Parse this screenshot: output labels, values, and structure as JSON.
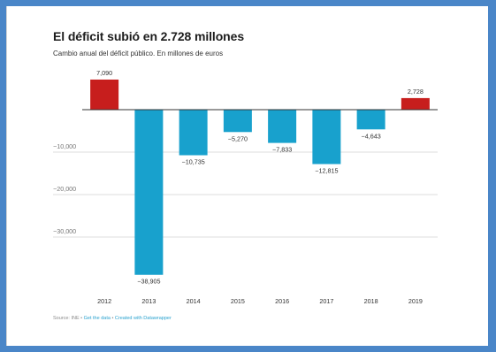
{
  "frame_color": "#4a86c8",
  "header": {
    "title": "El déficit subió en 2.728 millones",
    "subtitle": "Cambio anual del déficit público. En millones de euros"
  },
  "footer": {
    "source": "Source: INE",
    "separator": " • ",
    "get_data": "Get the data",
    "created_with": "Created with Datawrapper"
  },
  "chart_data": {
    "type": "bar",
    "categories": [
      "2012",
      "2013",
      "2014",
      "2015",
      "2016",
      "2017",
      "2018",
      "2019"
    ],
    "values": [
      7090,
      -38905,
      -10735,
      -5270,
      -7833,
      -12815,
      -4643,
      2728
    ],
    "value_labels": [
      "7,090",
      "−38,905",
      "−10,735",
      "−5,270",
      "−7,833",
      "−12,815",
      "−4,643",
      "2,728"
    ],
    "yticks": [
      -10000,
      -20000,
      -30000
    ],
    "ytick_labels": [
      "−10,000",
      "−20,000",
      "−30,000"
    ],
    "ylim": [
      -40000,
      8000
    ],
    "grid": true,
    "colors": {
      "positive": "#c71e1d",
      "negative": "#18a1cd",
      "grid": "#dddddd",
      "zero": "#333333"
    }
  }
}
